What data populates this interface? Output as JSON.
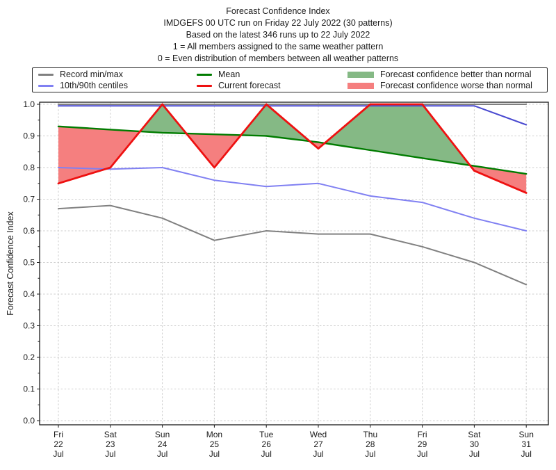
{
  "header": {
    "title": "Forecast Confidence Index",
    "subtitle_run": "IMDGEFS 00 UTC run on Friday 22 July 2022 (30 patterns)",
    "subtitle_based": "Based on the latest 346 runs up to 22 July 2022",
    "subtitle_scale_one": "1 = All members assigned to the same weather pattern",
    "subtitle_scale_zero": "0 = Even distribution of members between all weather patterns"
  },
  "legend": {
    "items": [
      {
        "label": "Record min/max",
        "type": "line",
        "color": "#808080"
      },
      {
        "label": "10th/90th centiles",
        "type": "line",
        "color": "#8080f2"
      },
      {
        "label": "Mean",
        "type": "line",
        "color": "#007c00"
      },
      {
        "label": "Current forecast",
        "type": "line",
        "color": "#ee1111"
      },
      {
        "label": "Forecast confidence better than normal",
        "type": "patch",
        "color": "#85b985"
      },
      {
        "label": "Forecast confidence worse than normal",
        "type": "patch",
        "color": "#f57f7f"
      }
    ]
  },
  "chart_data": {
    "type": "line",
    "title": "Forecast Confidence Index",
    "ylabel": "Forecast Confidence Index",
    "ylim": [
      0.0,
      1.0
    ],
    "grid": true,
    "legend_position": "top",
    "x_categories": [
      "Fri 22 Jul",
      "Sat 23 Jul",
      "Sun 24 Jul",
      "Mon 25 Jul",
      "Tue 26 Jul",
      "Wed 27 Jul",
      "Thu 28 Jul",
      "Fri 29 Jul",
      "Sat 30 Jul",
      "Sun 31 Jul"
    ],
    "x_tick_labels": [
      [
        "Fri",
        "22",
        "Jul"
      ],
      [
        "Sat",
        "23",
        "Jul"
      ],
      [
        "Sun",
        "24",
        "Jul"
      ],
      [
        "Mon",
        "25",
        "Jul"
      ],
      [
        "Tue",
        "26",
        "Jul"
      ],
      [
        "Wed",
        "27",
        "Jul"
      ],
      [
        "Thu",
        "28",
        "Jul"
      ],
      [
        "Fri",
        "29",
        "Jul"
      ],
      [
        "Sat",
        "30",
        "Jul"
      ],
      [
        "Sun",
        "31",
        "Jul"
      ]
    ],
    "yticks": [
      0.0,
      0.1,
      0.2,
      0.3,
      0.4,
      0.5,
      0.6,
      0.7,
      0.8,
      0.9,
      1.0
    ],
    "ytick_labels": [
      "0.0",
      "0.1",
      "0.2",
      "0.3",
      "0.4",
      "0.5",
      "0.6",
      "0.7",
      "0.8",
      "0.9",
      "1.0"
    ],
    "series": [
      {
        "name": "Record max",
        "color": "#808080",
        "width": 2,
        "values": [
          1.0,
          1.0,
          1.0,
          1.0,
          1.0,
          1.0,
          1.0,
          1.0,
          1.0,
          1.0
        ]
      },
      {
        "name": "Record min",
        "color": "#808080",
        "width": 2,
        "values": [
          0.67,
          0.68,
          0.64,
          0.57,
          0.6,
          0.59,
          0.59,
          0.55,
          0.5,
          0.43
        ]
      },
      {
        "name": "90th centile",
        "color": "#4949d0",
        "width": 2,
        "values": [
          1.0,
          1.0,
          1.0,
          1.0,
          1.0,
          1.0,
          1.0,
          1.0,
          1.0,
          0.94
        ]
      },
      {
        "name": "10th centile",
        "color": "#8080f2",
        "width": 2,
        "values": [
          0.8,
          0.795,
          0.8,
          0.76,
          0.74,
          0.75,
          0.71,
          0.69,
          0.64,
          0.6
        ]
      },
      {
        "name": "Mean",
        "color": "#007c00",
        "width": 2.4,
        "values": [
          0.93,
          0.92,
          0.91,
          0.905,
          0.9,
          0.88,
          0.855,
          0.83,
          0.805,
          0.78
        ]
      },
      {
        "name": "Current forecast",
        "color": "#ee1111",
        "width": 2.8,
        "values": [
          0.75,
          0.8,
          1.0,
          0.8,
          1.0,
          0.86,
          1.0,
          1.0,
          0.79,
          0.72
        ]
      }
    ],
    "fills": [
      {
        "name": "Forecast confidence better than normal",
        "color": "#85b985",
        "between": [
          "Current forecast",
          "Mean"
        ],
        "condition": "current_above_mean"
      },
      {
        "name": "Forecast confidence worse than normal",
        "color": "#f57f7f",
        "between": [
          "Current forecast",
          "Mean"
        ],
        "condition": "current_below_mean"
      }
    ]
  }
}
